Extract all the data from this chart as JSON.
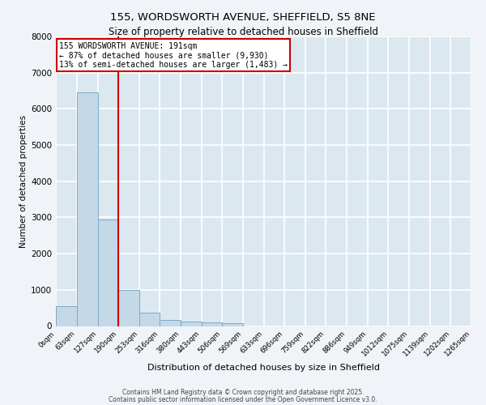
{
  "title1": "155, WORDSWORTH AVENUE, SHEFFIELD, S5 8NE",
  "title2": "Size of property relative to detached houses in Sheffield",
  "xlabel": "Distribution of detached houses by size in Sheffield",
  "ylabel": "Number of detached properties",
  "bar_edges": [
    0,
    63,
    127,
    190,
    253,
    316,
    380,
    443,
    506,
    569,
    633,
    696,
    759,
    822,
    886,
    949,
    1012,
    1075,
    1139,
    1202,
    1265
  ],
  "bar_heights": [
    550,
    6450,
    2950,
    1000,
    375,
    175,
    125,
    100,
    75,
    0,
    0,
    0,
    0,
    0,
    0,
    0,
    0,
    0,
    0,
    0
  ],
  "bar_color": "#c5d8e8",
  "bar_edgecolor": "#7aaac8",
  "vline_x": 190,
  "vline_color": "#cc0000",
  "annotation_text": "155 WORDSWORTH AVENUE: 191sqm\n← 87% of detached houses are smaller (9,930)\n13% of semi-detached houses are larger (1,483) →",
  "annotation_box_color": "#cc0000",
  "ylim": [
    0,
    8000
  ],
  "yticks": [
    0,
    1000,
    2000,
    3000,
    4000,
    5000,
    6000,
    7000,
    8000
  ],
  "bg_color": "#dce8f0",
  "grid_color": "#ffffff",
  "fig_facecolor": "#f0f4f8",
  "footer1": "Contains HM Land Registry data © Crown copyright and database right 2025.",
  "footer2": "Contains public sector information licensed under the Open Government Licence v3.0.",
  "tick_labels": [
    "0sqm",
    "63sqm",
    "127sqm",
    "190sqm",
    "253sqm",
    "316sqm",
    "380sqm",
    "443sqm",
    "506sqm",
    "569sqm",
    "633sqm",
    "696sqm",
    "759sqm",
    "822sqm",
    "886sqm",
    "949sqm",
    "1012sqm",
    "1075sqm",
    "1139sqm",
    "1202sqm",
    "1265sqm"
  ]
}
